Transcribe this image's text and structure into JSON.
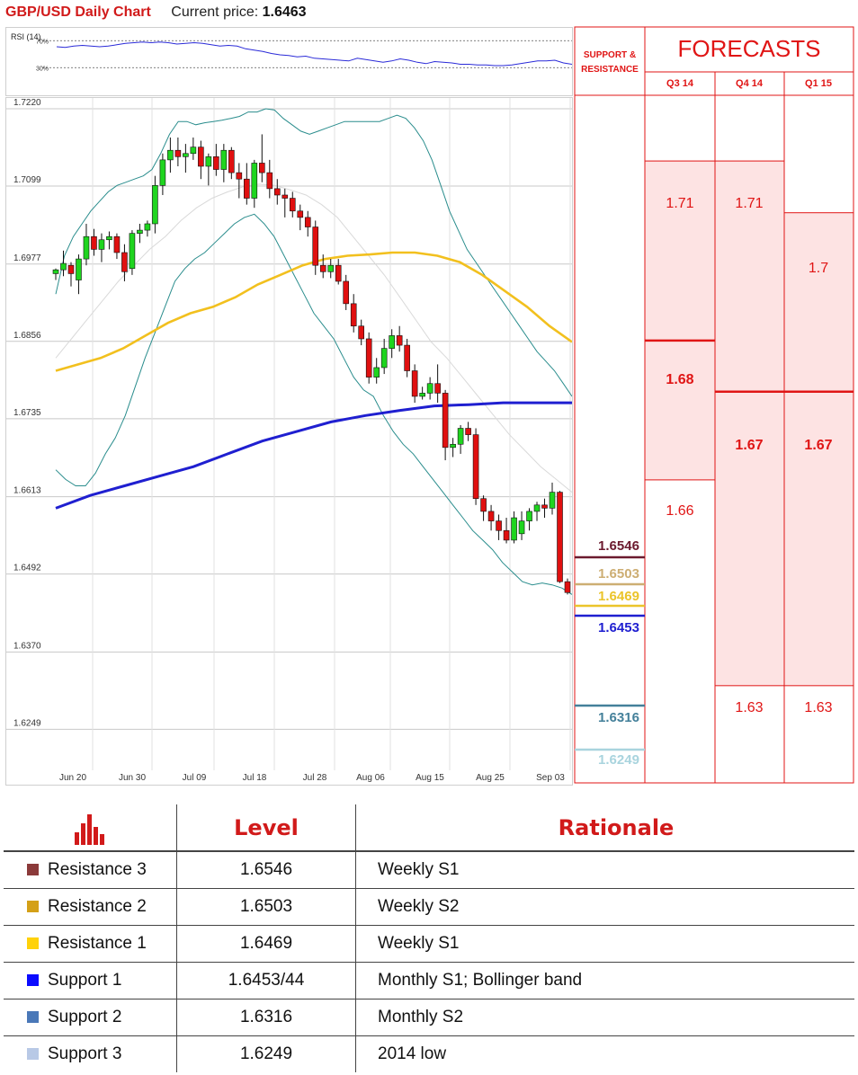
{
  "header": {
    "title": "GBP/USD Daily Chart",
    "price_label": "Current price:",
    "price_value": "1.6463"
  },
  "chart_data": {
    "type": "candlestick",
    "title": "GBP/USD Daily Chart",
    "rsi": {
      "label": "RSI (14)",
      "levels": [
        "70%",
        "30%"
      ],
      "values": [
        61,
        60,
        62,
        63,
        62,
        61,
        62,
        64,
        66,
        67,
        68,
        67,
        68,
        67,
        65,
        66,
        67,
        66,
        64,
        62,
        63,
        62,
        58,
        56,
        54,
        51,
        49,
        48,
        46,
        47,
        44,
        43,
        42,
        41,
        40,
        44,
        42,
        40,
        38,
        40,
        43,
        41,
        38,
        36,
        39,
        38,
        37,
        35,
        35,
        34,
        34,
        33,
        33,
        34,
        36,
        38,
        40,
        40,
        41,
        37,
        35
      ]
    },
    "ylim": [
      1.6185,
      1.723
    ],
    "y_ticks": [
      "1.7220",
      "1.7099",
      "1.6977",
      "1.6856",
      "1.6735",
      "1.6613",
      "1.6492",
      "1.6370",
      "1.6249"
    ],
    "x_ticks": [
      "Jun 20",
      "Jun 30",
      "Jul 09",
      "Jul 18",
      "Jul 28",
      "Aug 06",
      "Aug 15",
      "Aug 25",
      "Sep 03"
    ],
    "ohlc": [
      [
        1.6962,
        1.697,
        1.6952,
        1.6968
      ],
      [
        1.6968,
        1.6998,
        1.6958,
        1.6978
      ],
      [
        1.6975,
        1.698,
        1.6942,
        1.6962
      ],
      [
        1.6952,
        1.6992,
        1.693,
        1.6985
      ],
      [
        1.6985,
        1.704,
        1.6975,
        1.702
      ],
      [
        1.702,
        1.7032,
        1.699,
        1.7
      ],
      [
        1.7,
        1.7025,
        1.698,
        1.7015
      ],
      [
        1.7015,
        1.7028,
        1.7,
        1.702
      ],
      [
        1.702,
        1.7025,
        1.6985,
        1.6995
      ],
      [
        1.6995,
        1.7008,
        1.695,
        1.6965
      ],
      [
        1.697,
        1.703,
        1.696,
        1.7025
      ],
      [
        1.7025,
        1.704,
        1.701,
        1.703
      ],
      [
        1.703,
        1.7045,
        1.702,
        1.704
      ],
      [
        1.704,
        1.7115,
        1.7025,
        1.71
      ],
      [
        1.71,
        1.715,
        1.7085,
        1.714
      ],
      [
        1.714,
        1.7175,
        1.712,
        1.7155
      ],
      [
        1.7155,
        1.7175,
        1.713,
        1.7145
      ],
      [
        1.7145,
        1.7165,
        1.712,
        1.715
      ],
      [
        1.715,
        1.7175,
        1.714,
        1.716
      ],
      [
        1.716,
        1.717,
        1.711,
        1.713
      ],
      [
        1.713,
        1.715,
        1.71,
        1.7145
      ],
      [
        1.7145,
        1.7165,
        1.7115,
        1.7125
      ],
      [
        1.7125,
        1.7165,
        1.7105,
        1.7155
      ],
      [
        1.7155,
        1.716,
        1.711,
        1.712
      ],
      [
        1.712,
        1.7135,
        1.708,
        1.711
      ],
      [
        1.711,
        1.7135,
        1.707,
        1.708
      ],
      [
        1.708,
        1.714,
        1.7065,
        1.7135
      ],
      [
        1.7135,
        1.718,
        1.7105,
        1.712
      ],
      [
        1.712,
        1.714,
        1.708,
        1.7095
      ],
      [
        1.7095,
        1.711,
        1.707,
        1.7085
      ],
      [
        1.7085,
        1.7095,
        1.705,
        1.708
      ],
      [
        1.708,
        1.709,
        1.705,
        1.706
      ],
      [
        1.706,
        1.707,
        1.703,
        1.705
      ],
      [
        1.705,
        1.706,
        1.702,
        1.7035
      ],
      [
        1.7035,
        1.7045,
        1.696,
        1.6975
      ],
      [
        1.6975,
        1.6992,
        1.6955,
        1.6965
      ],
      [
        1.6965,
        1.6985,
        1.6955,
        1.6975
      ],
      [
        1.6975,
        1.6985,
        1.6945,
        1.695
      ],
      [
        1.695,
        1.696,
        1.6905,
        1.6915
      ],
      [
        1.6915,
        1.693,
        1.687,
        1.688
      ],
      [
        1.688,
        1.689,
        1.685,
        1.686
      ],
      [
        1.686,
        1.687,
        1.679,
        1.68
      ],
      [
        1.68,
        1.683,
        1.679,
        1.6815
      ],
      [
        1.6815,
        1.686,
        1.6805,
        1.6845
      ],
      [
        1.6845,
        1.6875,
        1.683,
        1.6865
      ],
      [
        1.6865,
        1.688,
        1.684,
        1.685
      ],
      [
        1.685,
        1.686,
        1.68,
        1.681
      ],
      [
        1.681,
        1.682,
        1.676,
        1.677
      ],
      [
        1.677,
        1.6785,
        1.6765,
        1.6775
      ],
      [
        1.6775,
        1.68,
        1.6765,
        1.679
      ],
      [
        1.679,
        1.682,
        1.676,
        1.6775
      ],
      [
        1.6775,
        1.678,
        1.667,
        1.669
      ],
      [
        1.669,
        1.6705,
        1.6675,
        1.6695
      ],
      [
        1.6695,
        1.6725,
        1.668,
        1.672
      ],
      [
        1.672,
        1.673,
        1.67,
        1.671
      ],
      [
        1.671,
        1.672,
        1.66,
        1.661
      ],
      [
        1.661,
        1.6615,
        1.6575,
        1.659
      ],
      [
        1.659,
        1.66,
        1.656,
        1.6575
      ],
      [
        1.6575,
        1.6585,
        1.6545,
        1.656
      ],
      [
        1.656,
        1.658,
        1.654,
        1.6545
      ],
      [
        1.6545,
        1.659,
        1.654,
        1.658
      ],
      [
        1.6555,
        1.659,
        1.6545,
        1.6575
      ],
      [
        1.6575,
        1.6595,
        1.656,
        1.659
      ],
      [
        1.659,
        1.6605,
        1.6575,
        1.66
      ],
      [
        1.66,
        1.661,
        1.658,
        1.6595
      ],
      [
        1.6595,
        1.6635,
        1.6585,
        1.662
      ],
      [
        1.662,
        1.6622,
        1.6478,
        1.648
      ],
      [
        1.648,
        1.6485,
        1.646,
        1.6463
      ]
    ],
    "indicators": {
      "bollinger_upper": [
        [
          0,
          1.693
        ],
        [
          1,
          1.699
        ],
        [
          2,
          1.702
        ],
        [
          3,
          1.704
        ],
        [
          4,
          1.706
        ],
        [
          5,
          1.7075
        ],
        [
          6,
          1.709
        ],
        [
          7,
          1.71
        ],
        [
          8,
          1.7105
        ],
        [
          9,
          1.711
        ],
        [
          10,
          1.7115
        ],
        [
          11,
          1.7125
        ],
        [
          12,
          1.715
        ],
        [
          13,
          1.718
        ],
        [
          14,
          1.72
        ],
        [
          15,
          1.72
        ],
        [
          16,
          1.7195
        ],
        [
          17,
          1.7198
        ],
        [
          18,
          1.72
        ],
        [
          19,
          1.7202
        ],
        [
          20,
          1.7205
        ],
        [
          21,
          1.7208
        ],
        [
          22,
          1.7215
        ],
        [
          23,
          1.7215
        ],
        [
          24,
          1.722
        ],
        [
          25,
          1.7218
        ],
        [
          26,
          1.7205
        ],
        [
          27,
          1.7195
        ],
        [
          28,
          1.7185
        ],
        [
          29,
          1.718
        ],
        [
          30,
          1.7185
        ],
        [
          31,
          1.719
        ],
        [
          32,
          1.7195
        ],
        [
          33,
          1.72
        ],
        [
          34,
          1.72
        ],
        [
          35,
          1.72
        ],
        [
          36,
          1.72
        ],
        [
          37,
          1.72
        ],
        [
          38,
          1.7205
        ],
        [
          39,
          1.721
        ],
        [
          40,
          1.7205
        ],
        [
          41,
          1.719
        ],
        [
          42,
          1.717
        ],
        [
          43,
          1.714
        ],
        [
          44,
          1.71
        ],
        [
          45,
          1.706
        ],
        [
          46,
          1.703
        ],
        [
          47,
          1.7
        ],
        [
          48,
          1.698
        ],
        [
          49,
          1.696
        ],
        [
          50,
          1.694
        ],
        [
          51,
          1.692
        ],
        [
          52,
          1.69
        ],
        [
          53,
          1.688
        ],
        [
          54,
          1.686
        ],
        [
          55,
          1.684
        ],
        [
          56,
          1.6825
        ],
        [
          57,
          1.681
        ],
        [
          58,
          1.679
        ],
        [
          59,
          1.677
        ]
      ],
      "bollinger_lower": [
        [
          0,
          1.6655
        ],
        [
          1,
          1.664
        ],
        [
          2,
          1.663
        ],
        [
          3,
          1.663
        ],
        [
          4,
          1.665
        ],
        [
          5,
          1.668
        ],
        [
          6,
          1.6705
        ],
        [
          7,
          1.674
        ],
        [
          8,
          1.6785
        ],
        [
          9,
          1.683
        ],
        [
          10,
          1.687
        ],
        [
          11,
          1.691
        ],
        [
          12,
          1.695
        ],
        [
          13,
          1.697
        ],
        [
          14,
          1.6985
        ],
        [
          15,
          1.6995
        ],
        [
          16,
          1.701
        ],
        [
          17,
          1.7025
        ],
        [
          18,
          1.704
        ],
        [
          19,
          1.705
        ],
        [
          20,
          1.7055
        ],
        [
          21,
          1.704
        ],
        [
          22,
          1.702
        ],
        [
          23,
          1.699
        ],
        [
          24,
          1.696
        ],
        [
          25,
          1.693
        ],
        [
          26,
          1.69
        ],
        [
          27,
          1.688
        ],
        [
          28,
          1.686
        ],
        [
          29,
          1.683
        ],
        [
          30,
          1.68
        ],
        [
          31,
          1.678
        ],
        [
          32,
          1.677
        ],
        [
          33,
          1.674
        ],
        [
          34,
          1.6715
        ],
        [
          35,
          1.6695
        ],
        [
          36,
          1.668
        ],
        [
          37,
          1.666
        ],
        [
          38,
          1.664
        ],
        [
          39,
          1.662
        ],
        [
          40,
          1.66
        ],
        [
          41,
          1.658
        ],
        [
          42,
          1.656
        ],
        [
          43,
          1.6545
        ],
        [
          44,
          1.653
        ],
        [
          45,
          1.651
        ],
        [
          46,
          1.6495
        ],
        [
          47,
          1.648
        ],
        [
          48,
          1.6475
        ],
        [
          49,
          1.6478
        ],
        [
          50,
          1.6475
        ],
        [
          51,
          1.647
        ],
        [
          52,
          1.646
        ]
      ],
      "bollinger_mid": [
        [
          0,
          1.683
        ],
        [
          1,
          1.686
        ],
        [
          2,
          1.689
        ],
        [
          3,
          1.692
        ],
        [
          4,
          1.695
        ],
        [
          5,
          1.6975
        ],
        [
          6,
          1.7
        ],
        [
          7,
          1.702
        ],
        [
          8,
          1.7045
        ],
        [
          9,
          1.7065
        ],
        [
          10,
          1.708
        ],
        [
          11,
          1.709
        ],
        [
          12,
          1.7098
        ],
        [
          13,
          1.7102
        ],
        [
          14,
          1.71
        ],
        [
          15,
          1.7093
        ],
        [
          16,
          1.7085
        ],
        [
          17,
          1.707
        ],
        [
          18,
          1.705
        ],
        [
          19,
          1.702
        ],
        [
          20,
          1.699
        ],
        [
          21,
          1.696
        ],
        [
          22,
          1.6925
        ],
        [
          23,
          1.689
        ],
        [
          24,
          1.6855
        ],
        [
          25,
          1.683
        ],
        [
          26,
          1.68
        ],
        [
          27,
          1.677
        ],
        [
          28,
          1.674
        ],
        [
          29,
          1.671
        ],
        [
          30,
          1.6685
        ],
        [
          31,
          1.666
        ],
        [
          32,
          1.664
        ],
        [
          33,
          1.662
        ]
      ],
      "sma_yellow": [
        [
          0,
          1.681
        ],
        [
          1,
          1.682
        ],
        [
          2,
          1.683
        ],
        [
          3,
          1.6845
        ],
        [
          4,
          1.6865
        ],
        [
          5,
          1.6885
        ],
        [
          6,
          1.69
        ],
        [
          7,
          1.691
        ],
        [
          8,
          1.6925
        ],
        [
          9,
          1.6945
        ],
        [
          10,
          1.696
        ],
        [
          11,
          1.6975
        ],
        [
          12,
          1.6985
        ],
        [
          13,
          1.699
        ],
        [
          14,
          1.6992
        ],
        [
          15,
          1.6995
        ],
        [
          16,
          1.6995
        ],
        [
          17,
          1.699
        ],
        [
          18,
          1.698
        ],
        [
          19,
          1.696
        ],
        [
          20,
          1.6935
        ],
        [
          21,
          1.691
        ],
        [
          22,
          1.688
        ],
        [
          23,
          1.6855
        ]
      ],
      "sma_blue": [
        [
          0,
          1.6595
        ],
        [
          1,
          1.6615
        ],
        [
          2,
          1.663
        ],
        [
          3,
          1.6645
        ],
        [
          4,
          1.666
        ],
        [
          5,
          1.668
        ],
        [
          6,
          1.67
        ],
        [
          7,
          1.6715
        ],
        [
          8,
          1.673
        ],
        [
          9,
          1.674
        ],
        [
          10,
          1.6748
        ],
        [
          11,
          1.6755
        ],
        [
          12,
          1.6757
        ],
        [
          13,
          1.676
        ],
        [
          14,
          1.676
        ],
        [
          15,
          1.676
        ]
      ]
    }
  },
  "forecasts": {
    "title": "FORECASTS",
    "sr_header": "SUPPORT & RESISTANCE",
    "columns": [
      "Q3 14",
      "Q4 14",
      "Q1 15"
    ],
    "levels": [
      {
        "value": "1.6546",
        "color": "#6b1a2e"
      },
      {
        "value": "1.6503",
        "color": "#cdae73"
      },
      {
        "value": "1.6469",
        "color": "#ebc42a"
      },
      {
        "value": "1.6453",
        "color": "#1f1fd0"
      },
      {
        "value": "1.6316",
        "color": "#44809a"
      },
      {
        "value": "1.6249",
        "color": "#a9d4de"
      }
    ],
    "q3": {
      "high": "1.71",
      "mid": "1.68",
      "low": "1.66"
    },
    "q4": {
      "high": "1.71",
      "mid": "1.67",
      "low": "1.63"
    },
    "q1": {
      "high": "1.7",
      "mid": "1.67",
      "low": "1.63"
    }
  },
  "table": {
    "headers": [
      "Level",
      "Rationale"
    ],
    "rows": [
      {
        "name": "Resistance 3",
        "level": "1.6546",
        "rationale": "Weekly S1",
        "color": "#8b3a3a"
      },
      {
        "name": "Resistance 2",
        "level": "1.6503",
        "rationale": "Weekly S2",
        "color": "#d4a017"
      },
      {
        "name": "Resistance 1",
        "level": "1.6469",
        "rationale": "Weekly S1",
        "color": "#ffd20a"
      },
      {
        "name": "Support 1",
        "level": "1.6453/44",
        "rationale": "Monthly S1; Bollinger band",
        "color": "#0b0bff"
      },
      {
        "name": "Support 2",
        "level": "1.6316",
        "rationale": "Monthly S2",
        "color": "#4a78b8"
      },
      {
        "name": "Support 3",
        "level": "1.6249",
        "rationale": "2014 low",
        "color": "#b8c9e6"
      }
    ]
  }
}
